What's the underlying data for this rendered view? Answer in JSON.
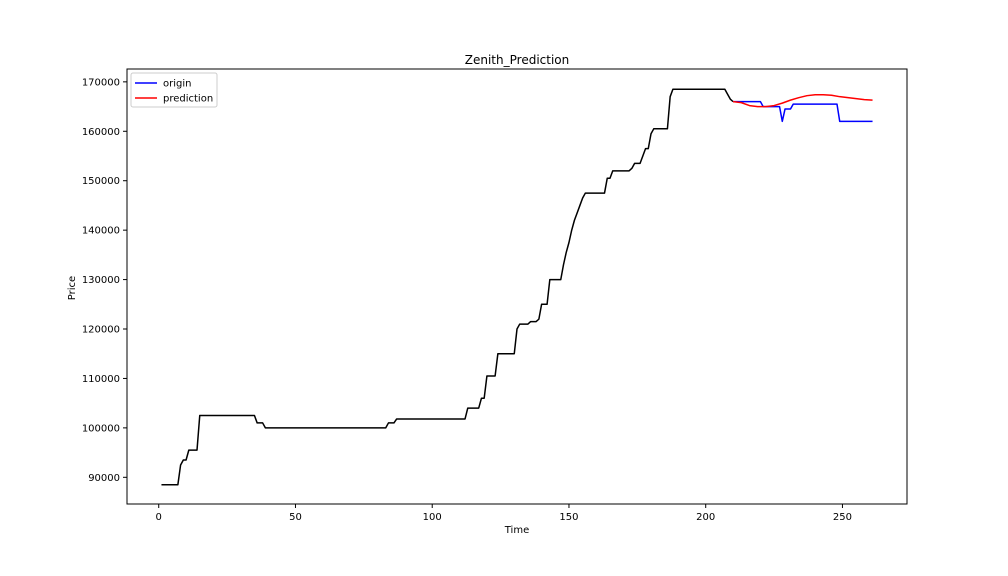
{
  "chart_data": {
    "type": "line",
    "title": "Zenith_Prediction",
    "xlabel": "Time",
    "ylabel": "Price",
    "xlim": [
      -11.6,
      273.6
    ],
    "ylim": [
      84600,
      172600
    ],
    "xticks": [
      0,
      50,
      100,
      150,
      200,
      250
    ],
    "yticks": [
      90000,
      100000,
      110000,
      120000,
      130000,
      140000,
      150000,
      160000,
      170000
    ],
    "grid": false,
    "legend_position": "top-left",
    "legend": [
      {
        "label": "origin",
        "color": "#0000ff"
      },
      {
        "label": "prediction",
        "color": "#ff0000"
      }
    ],
    "series": [
      {
        "name": "history",
        "color": "#000000",
        "points": [
          [
            1,
            88500
          ],
          [
            7,
            88500
          ],
          [
            8,
            92500
          ],
          [
            9,
            93500
          ],
          [
            10,
            93500
          ],
          [
            11,
            95500
          ],
          [
            14,
            95500
          ],
          [
            15,
            102500
          ],
          [
            35,
            102500
          ],
          [
            36,
            101000
          ],
          [
            38,
            101000
          ],
          [
            39,
            100000
          ],
          [
            83,
            100000
          ],
          [
            84,
            101000
          ],
          [
            86,
            101000
          ],
          [
            87,
            101800
          ],
          [
            112,
            101800
          ],
          [
            113,
            104000
          ],
          [
            117,
            104000
          ],
          [
            118,
            106000
          ],
          [
            119,
            106000
          ],
          [
            120,
            110500
          ],
          [
            123,
            110500
          ],
          [
            124,
            115000
          ],
          [
            130,
            115000
          ],
          [
            131,
            120000
          ],
          [
            132,
            121000
          ],
          [
            135,
            121000
          ],
          [
            136,
            121500
          ],
          [
            138,
            121500
          ],
          [
            139,
            122000
          ],
          [
            140,
            125000
          ],
          [
            142,
            125000
          ],
          [
            143,
            130000
          ],
          [
            147,
            130000
          ],
          [
            148,
            133000
          ],
          [
            149,
            135500
          ],
          [
            150,
            137500
          ],
          [
            151,
            140000
          ],
          [
            152,
            142000
          ],
          [
            153,
            143500
          ],
          [
            154,
            145000
          ],
          [
            155,
            146500
          ],
          [
            156,
            147500
          ],
          [
            163,
            147500
          ],
          [
            164,
            150500
          ],
          [
            165,
            150500
          ],
          [
            166,
            152000
          ],
          [
            172,
            152000
          ],
          [
            173,
            152500
          ],
          [
            174,
            153500
          ],
          [
            176,
            153500
          ],
          [
            177,
            155000
          ],
          [
            178,
            156500
          ],
          [
            179,
            156500
          ],
          [
            180,
            159500
          ],
          [
            181,
            160500
          ],
          [
            186,
            160500
          ],
          [
            187,
            167000
          ],
          [
            188,
            168500
          ],
          [
            207,
            168500
          ],
          [
            208,
            167500
          ],
          [
            209,
            166500
          ],
          [
            210,
            166000
          ]
        ]
      },
      {
        "name": "origin",
        "color": "#0000ff",
        "points": [
          [
            210,
            166000
          ],
          [
            220,
            166000
          ],
          [
            221,
            165000
          ],
          [
            227,
            165000
          ],
          [
            228,
            162000
          ],
          [
            229,
            164500
          ],
          [
            231,
            164500
          ],
          [
            232,
            165500
          ],
          [
            248,
            165500
          ],
          [
            249,
            162000
          ],
          [
            261,
            162000
          ]
        ]
      },
      {
        "name": "prediction",
        "color": "#ff0000",
        "points": [
          [
            210,
            166000
          ],
          [
            213,
            165800
          ],
          [
            216,
            165200
          ],
          [
            219,
            165000
          ],
          [
            222,
            165000
          ],
          [
            225,
            165200
          ],
          [
            228,
            165700
          ],
          [
            231,
            166300
          ],
          [
            234,
            166800
          ],
          [
            237,
            167200
          ],
          [
            240,
            167400
          ],
          [
            243,
            167400
          ],
          [
            246,
            167300
          ],
          [
            249,
            167000
          ],
          [
            252,
            166800
          ],
          [
            255,
            166600
          ],
          [
            258,
            166400
          ],
          [
            261,
            166300
          ]
        ]
      }
    ]
  }
}
